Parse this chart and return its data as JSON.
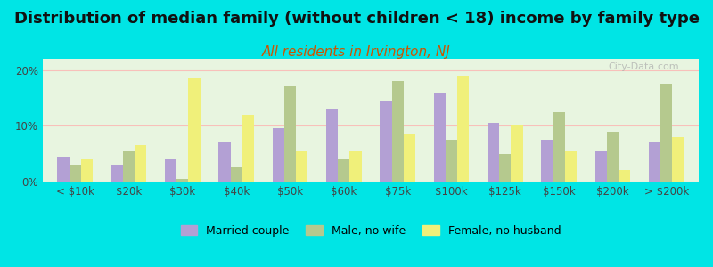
{
  "title": "Distribution of median family (without children < 18) income by family type",
  "subtitle": "All residents in Irvington, NJ",
  "categories": [
    "< $10k",
    "$20k",
    "$30k",
    "$40k",
    "$50k",
    "$60k",
    "$75k",
    "$100k",
    "$125k",
    "$150k",
    "$200k",
    "> $200k"
  ],
  "married_couple": [
    4.5,
    3.0,
    4.0,
    7.0,
    9.5,
    13.0,
    14.5,
    16.0,
    10.5,
    7.5,
    5.5,
    7.0
  ],
  "male_no_wife": [
    3.0,
    5.5,
    0.5,
    2.5,
    17.0,
    4.0,
    18.0,
    7.5,
    5.0,
    12.5,
    9.0,
    17.5
  ],
  "female_no_husband": [
    4.0,
    6.5,
    18.5,
    12.0,
    5.5,
    5.5,
    8.5,
    19.0,
    10.0,
    5.5,
    2.0,
    8.0
  ],
  "bar_colors": {
    "married_couple": "#b3a0d4",
    "male_no_wife": "#b5c98e",
    "female_no_husband": "#f0f07a"
  },
  "background_color": "#00e5e5",
  "plot_bg_start": "#e8f5e0",
  "plot_bg_end": "#ffffff",
  "ylim": [
    0,
    22
  ],
  "yticks": [
    0,
    10,
    20
  ],
  "ytick_labels": [
    "0%",
    "10%",
    "20%"
  ],
  "title_fontsize": 13,
  "subtitle_fontsize": 11,
  "subtitle_color": "#cc5500",
  "watermark": "City-Data.com",
  "legend_labels": [
    "Married couple",
    "Male, no wife",
    "Female, no husband"
  ]
}
